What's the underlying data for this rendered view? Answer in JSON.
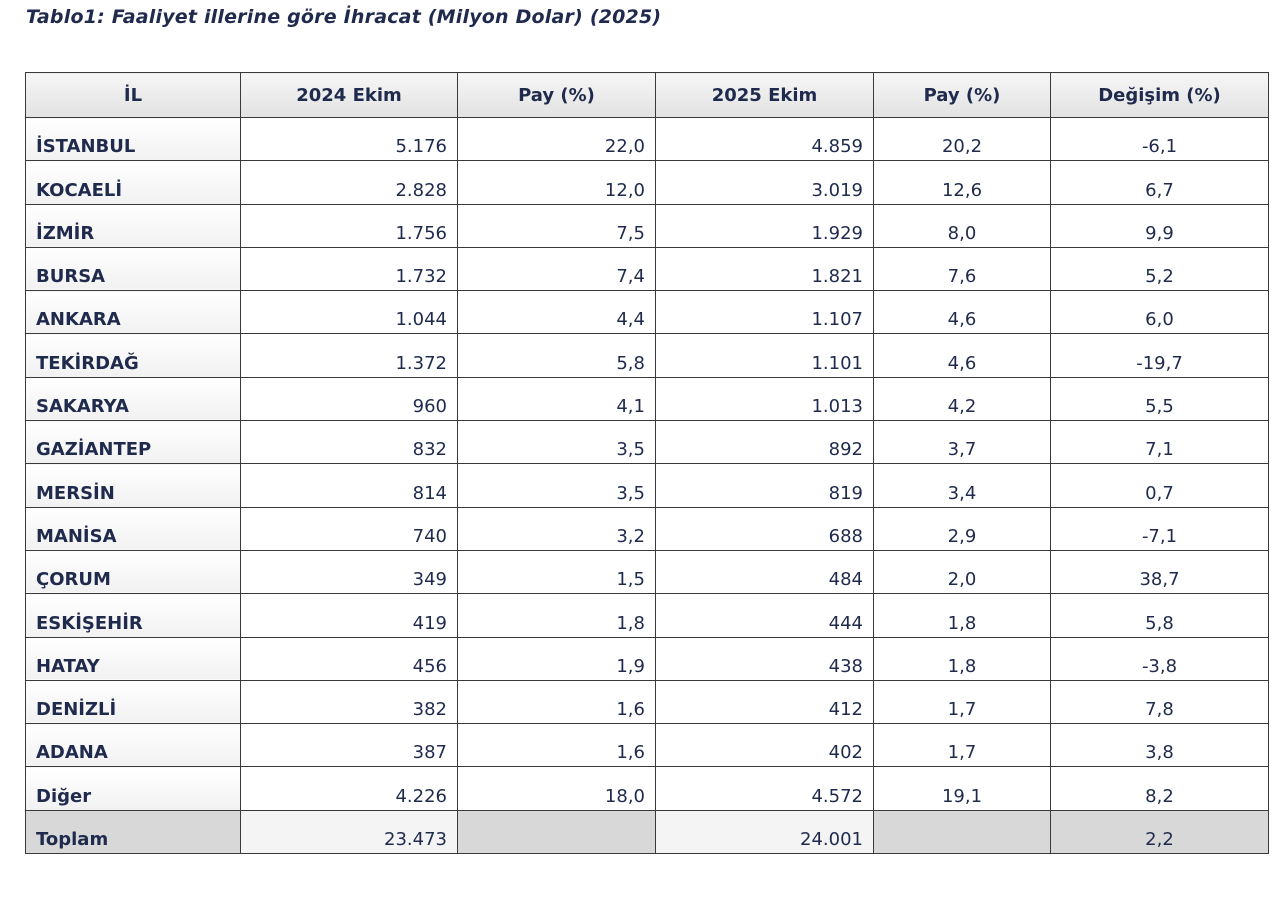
{
  "title": "Tablo1: Faaliyet illerine göre İhracat (Milyon Dolar) (2025)",
  "table": {
    "header": [
      "İL",
      "2024 Ekim",
      "Pay  (%)",
      "2025 Ekim",
      "Pay  (%)",
      "Değişim (%)"
    ],
    "rows": [
      [
        "İSTANBUL",
        "5.176",
        "22,0",
        "4.859",
        "20,2",
        "-6,1"
      ],
      [
        "KOCAELİ",
        "2.828",
        "12,0",
        "3.019",
        "12,6",
        "6,7"
      ],
      [
        "İZMİR",
        "1.756",
        "7,5",
        "1.929",
        "8,0",
        "9,9"
      ],
      [
        "BURSA",
        "1.732",
        "7,4",
        "1.821",
        "7,6",
        "5,2"
      ],
      [
        "ANKARA",
        "1.044",
        "4,4",
        "1.107",
        "4,6",
        "6,0"
      ],
      [
        "TEKİRDAĞ",
        "1.372",
        "5,8",
        "1.101",
        "4,6",
        "-19,7"
      ],
      [
        "SAKARYA",
        "960",
        "4,1",
        "1.013",
        "4,2",
        "5,5"
      ],
      [
        "GAZİANTEP",
        "832",
        "3,5",
        "892",
        "3,7",
        "7,1"
      ],
      [
        "MERSİN",
        "814",
        "3,5",
        "819",
        "3,4",
        "0,7"
      ],
      [
        "MANİSA",
        "740",
        "3,2",
        "688",
        "2,9",
        "-7,1"
      ],
      [
        "ÇORUM",
        "349",
        "1,5",
        "484",
        "2,0",
        "38,7"
      ],
      [
        "ESKİŞEHİR",
        "419",
        "1,8",
        "444",
        "1,8",
        "5,8"
      ],
      [
        "HATAY",
        "456",
        "1,9",
        "438",
        "1,8",
        "-3,8"
      ],
      [
        "DENİZLİ",
        "382",
        "1,6",
        "412",
        "1,7",
        "7,8"
      ],
      [
        "ADANA",
        "387",
        "1,6",
        "402",
        "1,7",
        "3,8"
      ],
      [
        "Diğer",
        "4.226",
        "18,0",
        "4.572",
        "19,1",
        "8,2"
      ]
    ],
    "total": [
      "Toplam",
      "23.473",
      null,
      "24.001",
      null,
      "2,2"
    ]
  }
}
